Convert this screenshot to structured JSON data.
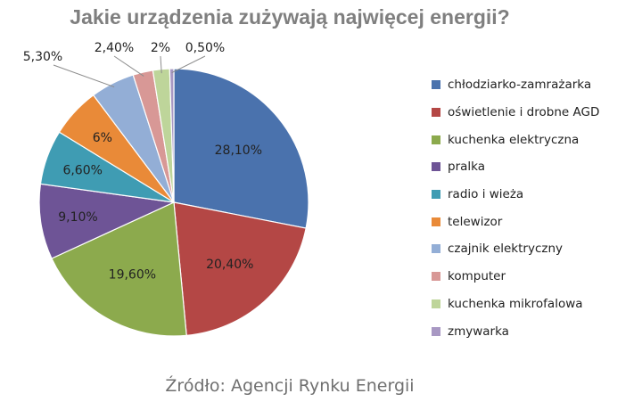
{
  "title": "Jakie urządzenia zużywają najwięcej energii?",
  "source": "Źródło: Agencji Rynku Energii",
  "chart_data": {
    "type": "pie",
    "title": "Jakie urządzenia zużywają najwięcej energii?",
    "legend_position": "right",
    "slices": [
      {
        "name": "chłodziarko-zamrażarka",
        "value": 28.1,
        "label": "28,10%",
        "color": "#4a72ad"
      },
      {
        "name": "oświetlenie i drobne AGD",
        "value": 20.4,
        "label": "20,40%",
        "color": "#b44745"
      },
      {
        "name": "kuchenka elektryczna",
        "value": 19.6,
        "label": "19,60%",
        "color": "#8caa4d"
      },
      {
        "name": "pralka",
        "value": 9.1,
        "label": "9,10%",
        "color": "#6e5496"
      },
      {
        "name": "radio i wieża",
        "value": 6.6,
        "label": "6,60%",
        "color": "#3f9cb3"
      },
      {
        "name": "telewizor",
        "value": 6.0,
        "label": "6%",
        "color": "#e98a38"
      },
      {
        "name": "czajnik elektryczny",
        "value": 5.3,
        "label": "5,30%",
        "color": "#93aed6"
      },
      {
        "name": "komputer",
        "value": 2.4,
        "label": "2,40%",
        "color": "#d89896"
      },
      {
        "name": "kuchenka mikrofalowa",
        "value": 2.0,
        "label": "2%",
        "color": "#bed59a"
      },
      {
        "name": "zmywarka",
        "value": 0.5,
        "label": "0,50%",
        "color": "#a898c3"
      }
    ]
  }
}
